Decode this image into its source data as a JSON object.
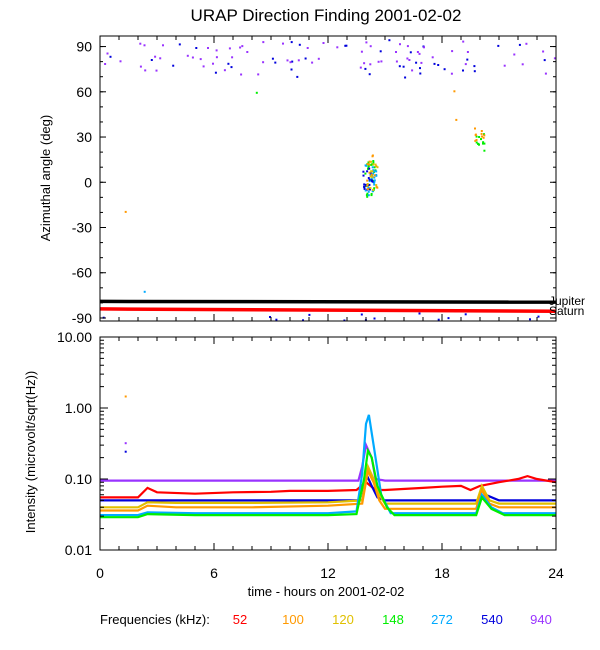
{
  "chart_data": {
    "title": "URAP Direction Finding  2001-02-02",
    "xlabel": "time - hours on 2001-02-02",
    "xlim": [
      0,
      24
    ],
    "x_ticks": [
      "0",
      "6",
      "12",
      "18",
      "24"
    ],
    "legend_title": "Frequencies (kHz):",
    "frequencies": [
      {
        "name": "52",
        "color": "#ff0000"
      },
      {
        "name": "100",
        "color": "#ff9900"
      },
      {
        "name": "120",
        "color": "#e0c000"
      },
      {
        "name": "148",
        "color": "#00ee00"
      },
      {
        "name": "272",
        "color": "#00aaff"
      },
      {
        "name": "540",
        "color": "#0000dd"
      },
      {
        "name": "940",
        "color": "#9933ff"
      }
    ],
    "panels": [
      {
        "type": "scatter",
        "ylabel": "Azimuthal angle (deg)",
        "ylim": [
          -92,
          97
        ],
        "y_ticks": [
          "90",
          "60",
          "30",
          "0",
          "-30",
          "-60",
          "-90"
        ],
        "reference_lines": [
          {
            "name": "Jupiter",
            "color": "#000000",
            "y_start": -79,
            "y_end": -79.5
          },
          {
            "name": "Saturn",
            "color": "#ff0000",
            "y_start": -84,
            "y_end": -85.5
          }
        ],
        "clusters": [
          {
            "freq": "540",
            "x": [
              0,
              24
            ],
            "y": [
              70,
              95
            ],
            "n": 40
          },
          {
            "freq": "940",
            "x": [
              0,
              24
            ],
            "y": [
              72,
              94
            ],
            "n": 70
          },
          {
            "freq": "148",
            "x": [
              13.9,
              14.5
            ],
            "y": [
              -10,
              15
            ],
            "n": 30
          },
          {
            "freq": "272",
            "x": [
              13.9,
              14.5
            ],
            "y": [
              -8,
              12
            ],
            "n": 25
          },
          {
            "freq": "540",
            "x": [
              13.8,
              14.3
            ],
            "y": [
              -5,
              10
            ],
            "n": 20
          },
          {
            "freq": "100",
            "x": [
              14.0,
              14.6
            ],
            "y": [
              -5,
              20
            ],
            "n": 15
          },
          {
            "freq": "120",
            "x": [
              14.0,
              14.6
            ],
            "y": [
              -5,
              15
            ],
            "n": 12
          },
          {
            "freq": "148",
            "x": [
              19.7,
              20.2
            ],
            "y": [
              20,
              33
            ],
            "n": 12
          },
          {
            "freq": "100",
            "x": [
              19.6,
              20.2
            ],
            "y": [
              28,
              38
            ],
            "n": 10
          },
          {
            "freq": "540",
            "x": [
              0,
              24
            ],
            "y": [
              -91,
              -86
            ],
            "n": 15
          }
        ],
        "points": [
          {
            "freq": "100",
            "x": 1.3,
            "y": -19
          },
          {
            "freq": "148",
            "x": 8.2,
            "y": 60
          },
          {
            "freq": "100",
            "x": 18.6,
            "y": 61
          },
          {
            "freq": "100",
            "x": 18.7,
            "y": 42
          },
          {
            "freq": "272",
            "x": 2.3,
            "y": -72
          }
        ]
      },
      {
        "type": "line",
        "ylabel": "Intensity (microvolt/sqrt(Hz))",
        "yscale": "log",
        "ylim": [
          0.01,
          10
        ],
        "y_ticks": [
          "10.00",
          "1.00",
          "0.10",
          "0.01"
        ],
        "series": [
          {
            "freq": "940",
            "x": [
              0,
              2,
              4,
              6,
              8,
              10,
              12,
              13.6,
              13.8,
              14,
              14.3,
              14.5,
              15,
              17,
              19,
              20,
              21,
              22,
              24
            ],
            "y": [
              0.095,
              0.095,
              0.095,
              0.095,
              0.095,
              0.095,
              0.095,
              0.095,
              0.15,
              0.3,
              0.2,
              0.1,
              0.095,
              0.095,
              0.095,
              0.095,
              0.095,
              0.095,
              0.095
            ]
          },
          {
            "freq": "52",
            "x": [
              0,
              2,
              2.5,
              3,
              5,
              7,
              9,
              10,
              12,
              13.5,
              14,
              14.5,
              15,
              17,
              18,
              19,
              19.5,
              20,
              21,
              22,
              22.5,
              23,
              24
            ],
            "y": [
              0.055,
              0.055,
              0.075,
              0.065,
              0.062,
              0.065,
              0.066,
              0.068,
              0.068,
              0.07,
              0.09,
              0.07,
              0.07,
              0.075,
              0.078,
              0.08,
              0.07,
              0.08,
              0.09,
              0.1,
              0.11,
              0.1,
              0.09
            ]
          },
          {
            "freq": "540",
            "x": [
              0,
              6,
              12,
              13.8,
              14,
              14.3,
              14.6,
              15,
              20,
              20.3,
              21,
              24
            ],
            "y": [
              0.05,
              0.05,
              0.05,
              0.05,
              0.12,
              0.08,
              0.055,
              0.05,
              0.05,
              0.06,
              0.05,
              0.05
            ]
          },
          {
            "freq": "120",
            "x": [
              0,
              2,
              2.5,
              4,
              8,
              12,
              13.8,
              14.1,
              14.4,
              14.7,
              15,
              18,
              19.8,
              20.1,
              20.5,
              21,
              24
            ],
            "y": [
              0.04,
              0.04,
              0.047,
              0.046,
              0.046,
              0.047,
              0.05,
              0.15,
              0.1,
              0.06,
              0.045,
              0.045,
              0.045,
              0.08,
              0.05,
              0.045,
              0.045
            ]
          },
          {
            "freq": "100",
            "x": [
              0,
              2,
              2.5,
              4,
              8,
              12,
              13.8,
              14.1,
              14.4,
              14.7,
              15,
              18,
              19.8,
              20.1,
              20.5,
              21,
              24
            ],
            "y": [
              0.036,
              0.036,
              0.042,
              0.04,
              0.04,
              0.042,
              0.045,
              0.13,
              0.09,
              0.05,
              0.038,
              0.038,
              0.038,
              0.07,
              0.045,
              0.04,
              0.04
            ]
          },
          {
            "freq": "272",
            "x": [
              0,
              2,
              2.5,
              5,
              10,
              12,
              13.5,
              13.8,
              14.0,
              14.15,
              14.4,
              14.8,
              15.3,
              19,
              19.8,
              20.1,
              20.6,
              21.2,
              24
            ],
            "y": [
              0.031,
              0.031,
              0.034,
              0.033,
              0.033,
              0.033,
              0.035,
              0.12,
              0.6,
              0.8,
              0.3,
              0.06,
              0.033,
              0.033,
              0.033,
              0.06,
              0.04,
              0.033,
              0.033
            ]
          },
          {
            "freq": "148",
            "x": [
              0,
              2,
              2.5,
              5,
              10,
              12,
              13.5,
              13.9,
              14.1,
              14.3,
              14.6,
              15.1,
              15.5,
              19,
              19.8,
              20.1,
              20.6,
              21.3,
              24
            ],
            "y": [
              0.029,
              0.029,
              0.032,
              0.031,
              0.031,
              0.031,
              0.032,
              0.1,
              0.25,
              0.2,
              0.08,
              0.04,
              0.031,
              0.031,
              0.031,
              0.055,
              0.038,
              0.031,
              0.031
            ]
          }
        ],
        "points": [
          {
            "freq": "100",
            "x": 1.3,
            "y": 1.5
          },
          {
            "freq": "940",
            "x": 1.3,
            "y": 0.33
          },
          {
            "freq": "540",
            "x": 1.3,
            "y": 0.25
          }
        ]
      }
    ]
  }
}
